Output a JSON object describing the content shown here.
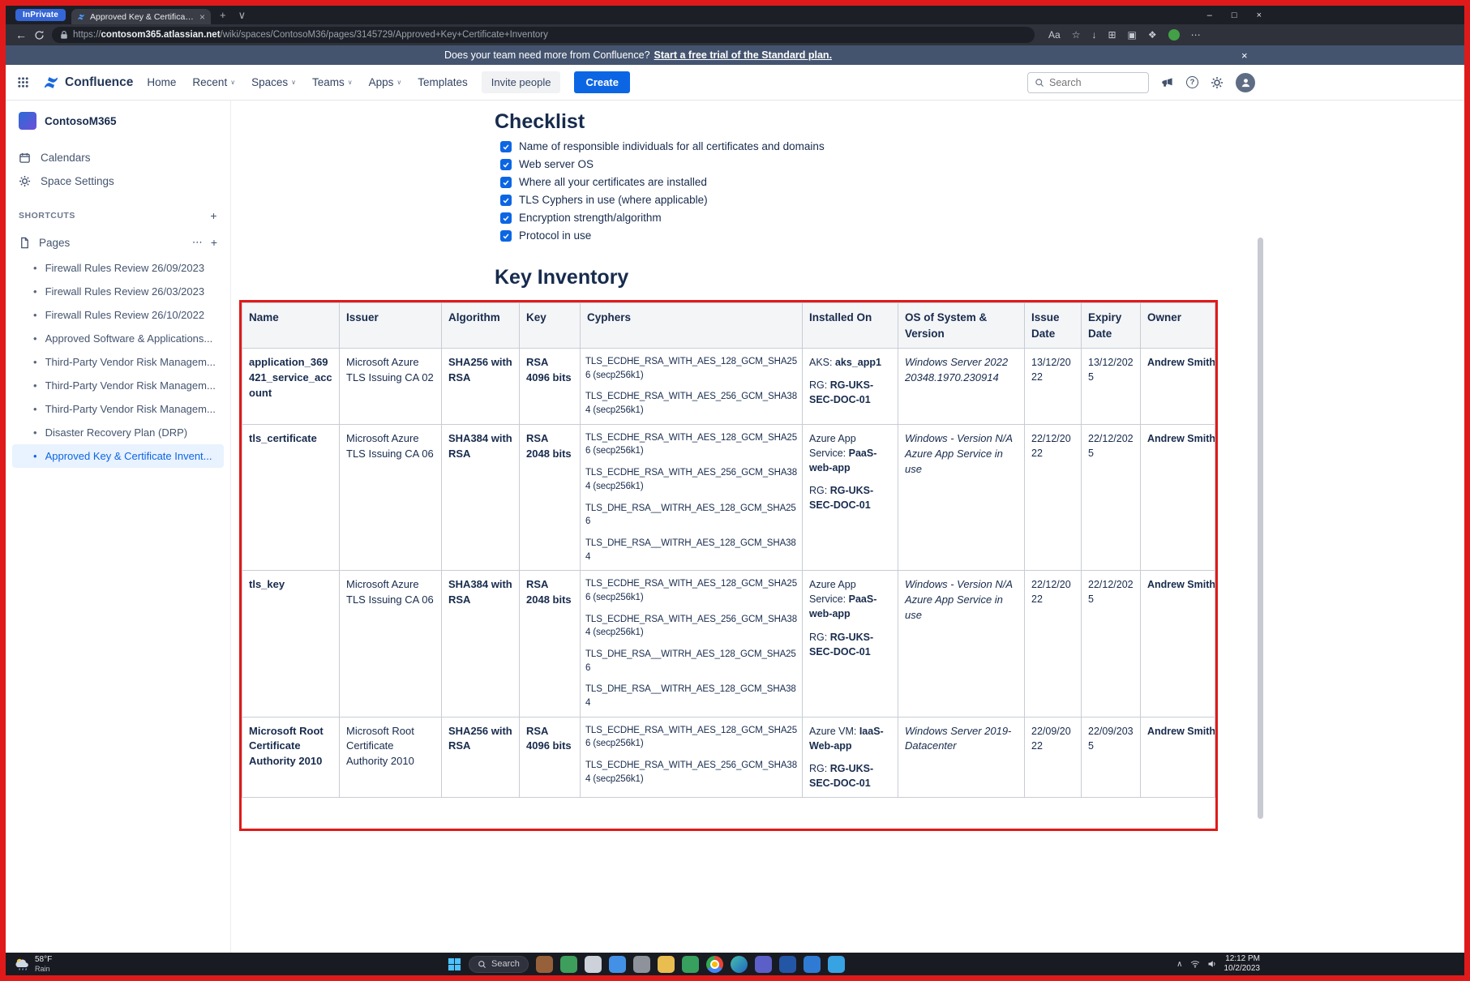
{
  "icons": {
    "close": "×",
    "plus": "+",
    "chevron_down": "∨",
    "chevron_up": "∧",
    "back": "←",
    "more_h": "⋯",
    "question": "?",
    "bullet": "•"
  },
  "browser": {
    "inprivate": "InPrivate",
    "tab": {
      "title": "Approved Key & Certificate Inv..."
    },
    "window_controls": [
      {
        "name": "minimize-icon",
        "glyph": "–"
      },
      {
        "name": "maximize-icon",
        "glyph": "□"
      },
      {
        "name": "close-window-icon",
        "glyph": "×"
      }
    ],
    "url": {
      "scheme": "https://",
      "domain": "contosom365.atlassian.net",
      "path": "/wiki/spaces/ContosoM36/pages/3145729/Approved+Key+Certificate+Inventory"
    },
    "toolbar_icons": [
      {
        "name": "text-size-icon",
        "glyph": "Aa"
      },
      {
        "name": "favorites-star-icon",
        "glyph": "☆"
      },
      {
        "name": "downloads-icon",
        "glyph": "↓"
      },
      {
        "name": "split-screen-icon",
        "glyph": "⊞"
      },
      {
        "name": "collections-icon",
        "glyph": "▣"
      },
      {
        "name": "extensions-icon",
        "glyph": "❖"
      },
      {
        "name": "profile-avatar-icon",
        "color": "#43a047"
      },
      {
        "name": "settings-more-icon",
        "glyph": "⋯"
      }
    ]
  },
  "banner": {
    "message": "Does your team need more from Confluence?",
    "link": "Start a free trial of the Standard plan."
  },
  "nav": {
    "brand": "Confluence",
    "items": [
      {
        "label": "Home",
        "chevron": false
      },
      {
        "label": "Recent",
        "chevron": true
      },
      {
        "label": "Spaces",
        "chevron": true
      },
      {
        "label": "Teams",
        "chevron": true
      },
      {
        "label": "Apps",
        "chevron": true
      },
      {
        "label": "Templates",
        "chevron": false
      }
    ],
    "invite": "Invite people",
    "create": "Create",
    "search_placeholder": "Search"
  },
  "sidebar": {
    "space": "ContosoM365",
    "links": [
      {
        "label": "Calendars"
      },
      {
        "label": "Space Settings"
      }
    ],
    "shortcuts": "SHORTCUTS",
    "pages_label": "Pages",
    "pages": [
      {
        "label": "Firewall Rules Review 26/09/2023"
      },
      {
        "label": "Firewall Rules Review 26/03/2023"
      },
      {
        "label": "Firewall Rules Review 26/10/2022"
      },
      {
        "label": "Approved Software & Applications..."
      },
      {
        "label": "Third-Party Vendor Risk Managem..."
      },
      {
        "label": "Third-Party Vendor Risk Managem..."
      },
      {
        "label": "Third-Party Vendor Risk Managem..."
      },
      {
        "label": "Disaster Recovery Plan (DRP)"
      },
      {
        "label": "Approved Key & Certificate Invent...",
        "selected": true
      }
    ]
  },
  "page": {
    "checklist_title": "Checklist",
    "checklist": [
      "Name of responsible individuals for all certificates and domains",
      "Web server OS",
      "Where all your certificates are installed",
      "TLS Cyphers in use (where applicable)",
      "Encryption strength/algorithm",
      "Protocol in use"
    ],
    "inventory_title": "Key Inventory",
    "table": {
      "headers": [
        "Name",
        "Issuer",
        "Algorithm",
        "Key",
        "Cyphers",
        "Installed On",
        "OS of System & Version",
        "Issue Date",
        "Expiry Date",
        "Owner"
      ],
      "rows": [
        {
          "name": "application_369421_service_account",
          "issuer": "Microsoft Azure TLS Issuing CA 02",
          "algorithm": "SHA256 with RSA",
          "key": "RSA 4096 bits",
          "cyphers": [
            "TLS_ECDHE_RSA_WITH_AES_128_GCM_SHA256 (secp256k1)",
            "TLS_ECDHE_RSA_WITH_AES_256_GCM_SHA384 (secp256k1)"
          ],
          "installed_on": [
            [
              [
                "AKS: ",
                0
              ],
              [
                "aks_app1",
                1
              ]
            ],
            [
              [
                "RG: ",
                0
              ],
              [
                "RG-UKS-SEC-DOC-01",
                1
              ]
            ]
          ],
          "os": "Windows Server 2022 20348.1970.230914",
          "issue_date": "13/12/2022",
          "expiry_date": "13/12/2025",
          "owner": "Andrew Smith"
        },
        {
          "name": "tls_certificate",
          "issuer": "Microsoft Azure TLS Issuing CA 06",
          "algorithm": "SHA384 with RSA",
          "key": "RSA 2048 bits",
          "cyphers": [
            "TLS_ECDHE_RSA_WITH_AES_128_GCM_SHA256 (secp256k1)",
            "TLS_ECDHE_RSA_WITH_AES_256_GCM_SHA384 (secp256k1)",
            "TLS_DHE_RSA__WITRH_AES_128_GCM_SHA256",
            "TLS_DHE_RSA__WITRH_AES_128_GCM_SHA384"
          ],
          "installed_on": [
            [
              [
                "Azure App Service: ",
                0
              ],
              [
                "PaaS-web-app",
                1
              ]
            ],
            [
              [
                "RG: ",
                0
              ],
              [
                "RG-UKS-SEC-DOC-01",
                1
              ]
            ]
          ],
          "os": "Windows - Version N/A Azure App Service in use",
          "issue_date": "22/12/2022",
          "expiry_date": "22/12/2025",
          "owner": "Andrew Smith"
        },
        {
          "name": "tls_key",
          "issuer": "Microsoft Azure TLS Issuing CA 06",
          "algorithm": "SHA384 with RSA",
          "key": "RSA 2048 bits",
          "cyphers": [
            "TLS_ECDHE_RSA_WITH_AES_128_GCM_SHA256 (secp256k1)",
            "TLS_ECDHE_RSA_WITH_AES_256_GCM_SHA384 (secp256k1)",
            "TLS_DHE_RSA__WITRH_AES_128_GCM_SHA256",
            "TLS_DHE_RSA__WITRH_AES_128_GCM_SHA384"
          ],
          "installed_on": [
            [
              [
                "Azure App Service: ",
                0
              ],
              [
                "PaaS-web-app",
                1
              ]
            ],
            [
              [
                "RG: ",
                0
              ],
              [
                "RG-UKS-SEC-DOC-01",
                1
              ]
            ]
          ],
          "os": "Windows - Version N/A Azure App Service in use",
          "issue_date": "22/12/2022",
          "expiry_date": "22/12/2025",
          "owner": "Andrew Smith"
        },
        {
          "name": "Microsoft Root Certificate Authority 2010",
          "issuer": "Microsoft Root Certificate Authority 2010",
          "algorithm": "SHA256 with RSA",
          "key": "RSA 4096 bits",
          "cyphers": [
            "TLS_ECDHE_RSA_WITH_AES_128_GCM_SHA256 (secp256k1)",
            "TLS_ECDHE_RSA_WITH_AES_256_GCM_SHA384 (secp256k1)"
          ],
          "installed_on": [
            [
              [
                "Azure VM: ",
                0
              ],
              [
                "IaaS-Web-app",
                1
              ]
            ],
            [
              [
                "RG: ",
                0
              ],
              [
                "RG-UKS-SEC-DOC-01",
                1
              ]
            ]
          ],
          "os": "Windows Server 2019-Datacenter",
          "issue_date": "22/09/2022",
          "expiry_date": "22/09/2035",
          "owner": "Andrew Smith"
        }
      ]
    }
  },
  "taskbar": {
    "weather_temp": "58°F",
    "weather_desc": "Rain",
    "search": "Search",
    "icons": [
      {
        "name": "photos-icon",
        "color": "#96603a"
      },
      {
        "name": "excel-icon",
        "color": "#3e9e5c"
      },
      {
        "name": "notepad-icon",
        "color": "#cdd2da"
      },
      {
        "name": "chat-icon",
        "color": "#4391e6"
      },
      {
        "name": "settings-gear-icon",
        "color": "#8d929b"
      },
      {
        "name": "file-explorer-icon",
        "color": "#e9bd4f"
      },
      {
        "name": "snipping-tool-icon",
        "color": "#37a05e"
      },
      {
        "name": "chrome-icon",
        "color": "chrome",
        "shape": "round"
      },
      {
        "name": "edge-icon",
        "color": "edge",
        "shape": "round"
      },
      {
        "name": "teams-icon",
        "color": "#5b5fc7"
      },
      {
        "name": "word-icon",
        "color": "#2456a6"
      },
      {
        "name": "outlook-icon",
        "color": "#2f7bd4"
      },
      {
        "name": "remote-desktop-icon",
        "color": "#38a3e2"
      }
    ],
    "time": "12:12 PM",
    "date": "10/2/2023"
  }
}
